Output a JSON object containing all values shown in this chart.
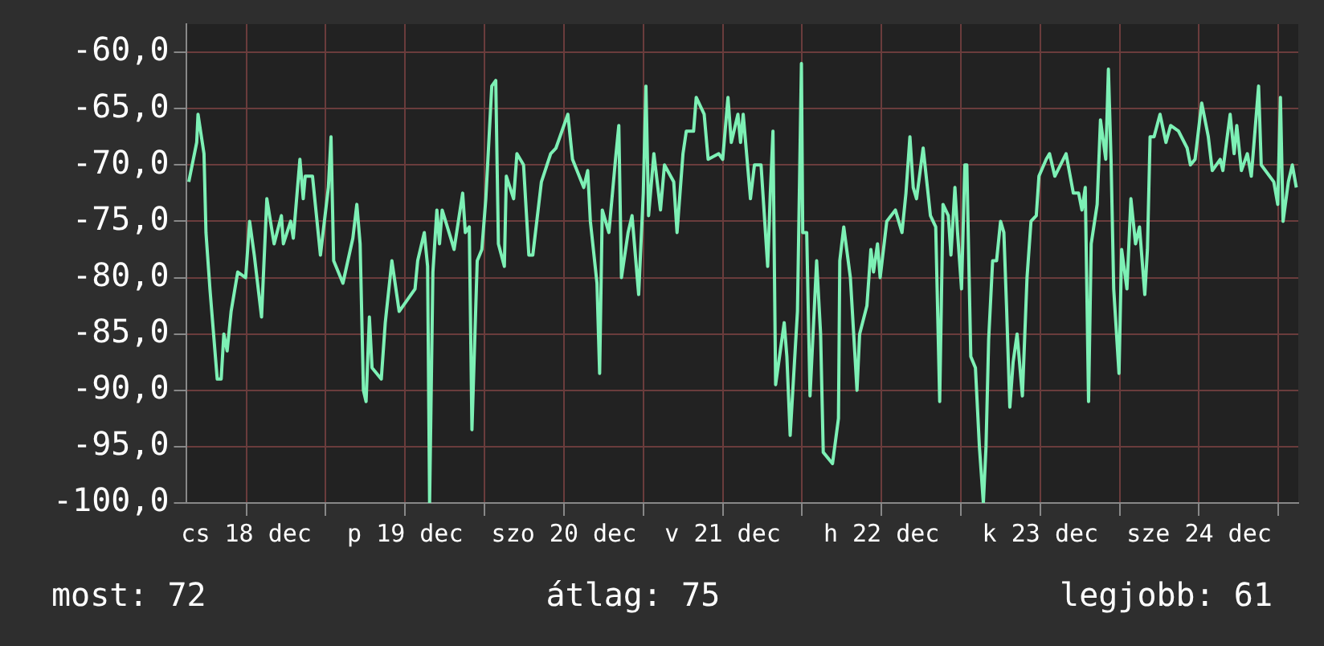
{
  "chart_data": {
    "type": "line",
    "annotations": [
      "most: 72",
      "átlag: 75",
      "legjobb: 61"
    ],
    "xlim": [
      "--12-18T03:00",
      "--12-25T03:00"
    ],
    "ylim": [
      -100,
      -57.5
    ],
    "xticks": [
      {
        "value": "--12-18T12:00",
        "label": "cs 18 dec"
      },
      {
        "value": "--12-19T00:00",
        "label": null
      },
      {
        "value": "--12-19T12:00",
        "label": "p 19 dec"
      },
      {
        "value": "--12-20T00:00",
        "label": null
      },
      {
        "value": "--12-20T12:00",
        "label": "szo 20 dec"
      },
      {
        "value": "--12-21T00:00",
        "label": null
      },
      {
        "value": "--12-21T12:00",
        "label": "v 21 dec"
      },
      {
        "value": "--12-22T00:00",
        "label": null
      },
      {
        "value": "--12-22T12:00",
        "label": "h 22 dec"
      },
      {
        "value": "--12-23T00:00",
        "label": null
      },
      {
        "value": "--12-23T12:00",
        "label": "k 23 dec"
      },
      {
        "value": "--12-24T00:00",
        "label": null
      },
      {
        "value": "--12-24T12:00",
        "label": "sze 24 dec"
      },
      {
        "value": "--12-25T00:00",
        "label": null
      }
    ],
    "yticks": [
      {
        "value": -100,
        "label": "-100,0"
      },
      {
        "value": -95,
        "label": "-95,0"
      },
      {
        "value": -90,
        "label": "-90,0"
      },
      {
        "value": -85,
        "label": "-85,0"
      },
      {
        "value": -80,
        "label": "-80,0"
      },
      {
        "value": -75,
        "label": "-75,0"
      },
      {
        "value": -70,
        "label": "-70,0"
      },
      {
        "value": -65,
        "label": "-65,0"
      },
      {
        "value": -60,
        "label": "-60,0"
      }
    ],
    "grid": true,
    "legend": false,
    "marker": "none",
    "line_style": "solid",
    "x": [
      "--12-18T03:18",
      "--12-18T04:30",
      "--12-18T04:42",
      "--12-18T05:36",
      "--12-18T05:54",
      "--12-18T06:30",
      "--12-18T07:36",
      "--12-18T08:12",
      "--12-18T08:36",
      "--12-18T09:06",
      "--12-18T09:42",
      "--12-18T10:42",
      "--12-18T11:54",
      "--12-18T12:30",
      "--12-18T13:12",
      "--12-18T14:18",
      "--12-18T15:06",
      "--12-18T16:12",
      "--12-18T17:18",
      "--12-18T17:36",
      "--12-18T18:42",
      "--12-18T19:06",
      "--12-18T20:06",
      "--12-18T20:36",
      "--12-18T20:54",
      "--12-18T22:00",
      "--12-18T23:12",
      "--12-19T00:24",
      "--12-19T00:48",
      "--12-19T01:12",
      "--12-19T02:36",
      "--12-19T04:06",
      "--12-19T04:42",
      "--12-19T05:12",
      "--12-19T05:42",
      "--12-19T06:06",
      "--12-19T06:36",
      "--12-19T07:00",
      "--12-19T08:24",
      "--12-19T09:00",
      "--12-19T10:00",
      "--12-19T11:06",
      "--12-19T12:18",
      "--12-19T13:30",
      "--12-19T13:54",
      "--12-19T14:54",
      "--12-19T15:24",
      "--12-19T15:42",
      "--12-19T16:12",
      "--12-19T16:48",
      "--12-19T17:12",
      "--12-19T17:36",
      "--12-19T18:54",
      "--12-19T19:24",
      "--12-19T20:42",
      "--12-19T21:06",
      "--12-19T21:42",
      "--12-19T22:06",
      "--12-19T22:30",
      "--12-19T22:54",
      "--12-19T23:36",
      "--12-20T00:12",
      "--12-20T01:06",
      "--12-20T01:42",
      "--12-20T02:06",
      "--12-20T03:00",
      "--12-20T03:18",
      "--12-20T04:24",
      "--12-20T04:54",
      "--12-20T05:54",
      "--12-20T06:42",
      "--12-20T07:18",
      "--12-20T08:36",
      "--12-20T10:00",
      "--12-20T10:48",
      "--12-20T12:36",
      "--12-20T13:18",
      "--12-20T15:00",
      "--12-20T15:36",
      "--12-20T16:00",
      "--12-20T17:00",
      "--12-20T17:24",
      "--12-20T17:48",
      "--12-20T18:48",
      "--12-20T19:48",
      "--12-20T20:18",
      "--12-20T20:42",
      "--12-20T21:42",
      "--12-20T22:18",
      "--12-20T23:18",
      "--12-21T00:00",
      "--12-21T00:24",
      "--12-21T00:48",
      "--12-21T01:36",
      "--12-21T02:36",
      "--12-21T03:12",
      "--12-21T04:36",
      "--12-21T05:06",
      "--12-21T06:00",
      "--12-21T06:30",
      "--12-21T07:36",
      "--12-21T08:00",
      "--12-21T09:12",
      "--12-21T09:48",
      "--12-21T11:24",
      "--12-21T12:00",
      "--12-21T12:48",
      "--12-21T13:18",
      "--12-21T14:18",
      "--12-21T14:42",
      "--12-21T15:06",
      "--12-21T16:12",
      "--12-21T16:48",
      "--12-21T17:48",
      "--12-21T18:48",
      "--12-21T19:12",
      "--12-21T19:36",
      "--12-21T20:00",
      "--12-21T21:18",
      "--12-21T21:42",
      "--12-21T22:12",
      "--12-21T23:18",
      "--12-21T23:54",
      "--12-22T00:06",
      "--12-22T00:42",
      "--12-22T01:12",
      "--12-22T02:12",
      "--12-22T02:48",
      "--12-22T03:12",
      "--12-22T04:36",
      "--12-22T05:30",
      "--12-22T05:42",
      "--12-22T06:18",
      "--12-22T07:18",
      "--12-22T08:18",
      "--12-22T08:42",
      "--12-22T09:48",
      "--12-22T10:24",
      "--12-22T10:48",
      "--12-22T11:24",
      "--12-22T11:48",
      "--12-22T12:48",
      "--12-22T14:06",
      "--12-22T15:06",
      "--12-22T15:42",
      "--12-22T16:18",
      "--12-22T16:48",
      "--12-22T17:18",
      "--12-22T18:18",
      "--12-22T19:24",
      "--12-22T20:12",
      "--12-22T20:48",
      "--12-22T21:18",
      "--12-22T22:06",
      "--12-22T22:30",
      "--12-22T23:06",
      "--12-22T23:30",
      "--12-23T00:06",
      "--12-23T00:36",
      "--12-23T00:54",
      "--12-23T01:30",
      "--12-23T02:12",
      "--12-23T02:48",
      "--12-23T03:24",
      "--12-23T03:48",
      "--12-23T04:12",
      "--12-23T04:48",
      "--12-23T05:24",
      "--12-23T06:00",
      "--12-23T06:30",
      "--12-23T06:54",
      "--12-23T07:24",
      "--12-23T07:54",
      "--12-23T08:30",
      "--12-23T09:18",
      "--12-23T10:00",
      "--12-23T10:36",
      "--12-23T11:24",
      "--12-23T11:48",
      "--12-23T12:54",
      "--12-23T13:24",
      "--12-23T14:12",
      "--12-23T15:54",
      "--12-23T17:00",
      "--12-23T17:48",
      "--12-23T18:18",
      "--12-23T18:48",
      "--12-23T19:18",
      "--12-23T19:42",
      "--12-23T20:36",
      "--12-23T21:06",
      "--12-23T21:54",
      "--12-23T22:18",
      "--12-23T22:42",
      "--12-23T23:06",
      "--12-23T23:54",
      "--12-24T00:18",
      "--12-24T01:06",
      "--12-24T01:42",
      "--12-24T02:24",
      "--12-24T03:00",
      "--12-24T03:48",
      "--12-24T04:12",
      "--12-24T04:36",
      "--12-24T05:12",
      "--12-24T06:06",
      "--12-24T07:00",
      "--12-24T07:42",
      "--12-24T08:54",
      "--12-24T10:12",
      "--12-24T10:42",
      "--12-24T11:24",
      "--12-24T12:24",
      "--12-24T13:24",
      "--12-24T14:00",
      "--12-24T15:12",
      "--12-24T15:36",
      "--12-24T16:42",
      "--12-24T17:18",
      "--12-24T17:42",
      "--12-24T18:24",
      "--12-24T19:18",
      "--12-24T19:54",
      "--12-24T21:00",
      "--12-24T21:24",
      "--12-24T23:18",
      "--12-24T23:54",
      "--12-25T00:18",
      "--12-25T00:42",
      "--12-25T01:30",
      "--12-25T02:06",
      "--12-25T02:42"
    ],
    "series": [
      {
        "color": "#7df0b5",
        "values": [
          -71.5,
          -68,
          -65.5,
          -69,
          -76,
          -81,
          -89,
          -89,
          -85,
          -86.5,
          -83,
          -79.5,
          -80,
          -75,
          -78,
          -83.5,
          -73,
          -77,
          -74.5,
          -77,
          -75,
          -76.5,
          -69.5,
          -73,
          -71,
          -71,
          -78,
          -72,
          -67.5,
          -78.5,
          -80.5,
          -76.5,
          -73.5,
          -77,
          -90,
          -91,
          -83.5,
          -88,
          -89,
          -84,
          -78.5,
          -83,
          -82,
          -81,
          -78.5,
          -76,
          -79,
          -100,
          -79.5,
          -74,
          -77,
          -74,
          -76.5,
          -77.5,
          -72.5,
          -76,
          -75.5,
          -93.5,
          -86,
          -78.5,
          -77.5,
          -73,
          -63,
          -62.5,
          -77,
          -79,
          -71,
          -73,
          -69,
          -70,
          -78,
          -78,
          -71.5,
          -69,
          -68.5,
          -65.5,
          -69.5,
          -72,
          -70.5,
          -75,
          -80.5,
          -88.5,
          -74,
          -76,
          -69.5,
          -66.5,
          -80,
          -76,
          -74.5,
          -81.5,
          -72.5,
          -63,
          -74.5,
          -69,
          -74,
          -70,
          -71.5,
          -76,
          -69,
          -67,
          -67,
          -64,
          -65.5,
          -69.5,
          -69,
          -69.5,
          -64,
          -68,
          -65.5,
          -68,
          -65.5,
          -73,
          -70,
          -70,
          -79,
          -72.5,
          -67,
          -89.5,
          -84,
          -87,
          -94,
          -83,
          -61,
          -76,
          -76,
          -90.5,
          -78.5,
          -85,
          -95.5,
          -96.5,
          -92.5,
          -78.5,
          -75.5,
          -80,
          -90,
          -85,
          -82.5,
          -77.5,
          -79.5,
          -77,
          -80,
          -75,
          -74,
          -76,
          -72.5,
          -67.5,
          -72,
          -73,
          -68.5,
          -74.5,
          -75.5,
          -91,
          -73.5,
          -74.5,
          -78,
          -72,
          -76,
          -81,
          -70,
          -70,
          -87,
          -88,
          -95,
          -100,
          -95,
          -85.5,
          -78.5,
          -78.5,
          -75,
          -76,
          -82.5,
          -91.5,
          -87.5,
          -85,
          -90.5,
          -80,
          -75,
          -74.5,
          -71,
          -69.5,
          -69,
          -71,
          -69,
          -72.5,
          -72.5,
          -74,
          -72,
          -91,
          -77,
          -73.5,
          -66,
          -69.5,
          -61.5,
          -69.5,
          -81,
          -88.5,
          -77.5,
          -81,
          -73,
          -77,
          -75.5,
          -81.5,
          -77.5,
          -67.5,
          -67.5,
          -65.5,
          -68,
          -66.5,
          -67,
          -68.5,
          -70,
          -69.5,
          -64.5,
          -67.5,
          -70.5,
          -69.5,
          -70.5,
          -65.5,
          -69,
          -66.5,
          -70.5,
          -69,
          -71,
          -63,
          -70,
          -71.5,
          -73.5,
          -64,
          -75,
          -71.5,
          -70,
          -72
        ]
      }
    ]
  }
}
